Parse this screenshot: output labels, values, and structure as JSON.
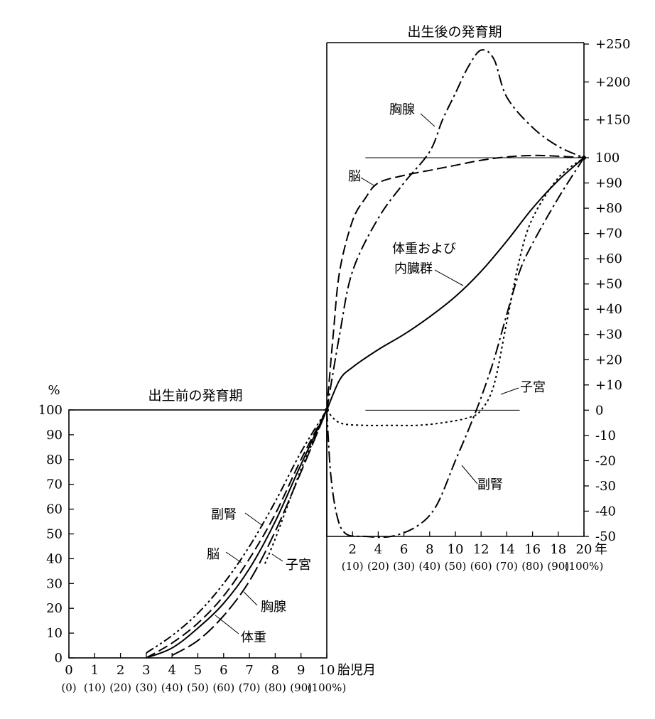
{
  "chart_data": [
    {
      "type": "line",
      "title": "出生前の発育期",
      "y_unit_label": "%",
      "x_axis_unit": "胎児月",
      "xlim": [
        0,
        10
      ],
      "ylim": [
        0,
        100
      ],
      "x_ticks": [
        "0",
        "1",
        "2",
        "3",
        "4",
        "5",
        "6",
        "7",
        "8",
        "9",
        "10"
      ],
      "x_ticks_percent": [
        "(0)",
        "(10)",
        "(20)",
        "(30)",
        "(40)",
        "(50)",
        "(60)",
        "(70)",
        "(80)",
        "(90)",
        "(100%)"
      ],
      "y_ticks": [
        "0",
        "10",
        "20",
        "30",
        "40",
        "50",
        "60",
        "70",
        "80",
        "90",
        "100"
      ],
      "series": [
        {
          "name": "副腎",
          "style": "dashdotdot",
          "x": [
            3,
            4,
            5,
            6,
            7,
            8,
            9,
            10
          ],
          "y": [
            2,
            9,
            18,
            30,
            45,
            63,
            83,
            100
          ]
        },
        {
          "name": "脳",
          "style": "dash",
          "x": [
            3,
            4,
            5,
            6,
            7,
            8,
            9,
            10
          ],
          "y": [
            0,
            6,
            14,
            25,
            40,
            58,
            80,
            100
          ]
        },
        {
          "name": "体重",
          "style": "solid",
          "x": [
            3,
            4,
            5,
            6,
            7,
            8,
            9,
            10
          ],
          "y": [
            0,
            4,
            12,
            22,
            36,
            55,
            78,
            100
          ]
        },
        {
          "name": "胸腺",
          "style": "longdash",
          "x": [
            4,
            5,
            6,
            7,
            8,
            9,
            10
          ],
          "y": [
            1,
            7,
            17,
            31,
            51,
            75,
            100
          ]
        },
        {
          "name": "子宮",
          "style": "dot",
          "x": [
            7.6,
            8,
            8.5,
            9,
            9.5,
            10
          ],
          "y": [
            38,
            48,
            62,
            76,
            88,
            100
          ]
        }
      ]
    },
    {
      "type": "line",
      "title": "出生後の発育期",
      "x_axis_unit": "年",
      "xlim": [
        0,
        20
      ],
      "ylim": [
        -50,
        250
      ],
      "x_ticks": [
        "2",
        "4",
        "6",
        "8",
        "10",
        "12",
        "14",
        "16",
        "18",
        "20"
      ],
      "x_ticks_percent": [
        "(10)",
        "(20)",
        "(30)",
        "(40)",
        "(50)",
        "(60)",
        "(70)",
        "(80)",
        "(90)",
        "(100%)"
      ],
      "y_ticks": [
        "-50",
        "-40",
        "-30",
        "-20",
        "-10",
        "0",
        "+10",
        "+20",
        "+30",
        "+40",
        "+50",
        "+60",
        "+70",
        "+80",
        "+90",
        "100",
        "+150",
        "+200",
        "+250"
      ],
      "series": [
        {
          "name": "胸腺",
          "style": "dashdot",
          "x": [
            0,
            1,
            2,
            4,
            6,
            8,
            9,
            10,
            11,
            12,
            13,
            14,
            16,
            18,
            20
          ],
          "y": [
            0,
            30,
            55,
            76,
            90,
            108,
            150,
            185,
            220,
            242,
            230,
            180,
            140,
            115,
            100
          ]
        },
        {
          "name": "脳",
          "style": "dash",
          "x": [
            0,
            0.5,
            1,
            2,
            3,
            4,
            6,
            8,
            10,
            12,
            14,
            16,
            18,
            20
          ],
          "y": [
            0,
            30,
            55,
            75,
            84,
            90,
            93,
            95,
            97,
            99,
            101,
            103,
            102,
            100
          ]
        },
        {
          "name": "体重および内臓群",
          "style": "solid",
          "x": [
            0,
            1,
            2,
            4,
            6,
            8,
            10,
            12,
            14,
            16,
            18,
            20
          ],
          "y": [
            0,
            12,
            17,
            24,
            30,
            37,
            45,
            55,
            67,
            80,
            91,
            100
          ]
        },
        {
          "name": "子宮",
          "style": "dot",
          "x": [
            0,
            1,
            3,
            5,
            7,
            9,
            11,
            12,
            13,
            14,
            15,
            16,
            18,
            20
          ],
          "y": [
            0,
            -5,
            -6,
            -6,
            -6,
            -5,
            -3,
            0,
            10,
            35,
            60,
            76,
            92,
            100
          ]
        },
        {
          "name": "副腎",
          "style": "dashdot",
          "x": [
            0,
            0.3,
            0.8,
            1.5,
            3,
            5,
            7,
            8.5,
            10,
            11,
            12,
            13,
            14,
            15,
            16,
            18,
            20
          ],
          "y": [
            0,
            -25,
            -42,
            -49,
            -50,
            -50,
            -46,
            -38,
            -20,
            -8,
            5,
            20,
            38,
            55,
            66,
            84,
            100
          ]
        }
      ]
    }
  ]
}
